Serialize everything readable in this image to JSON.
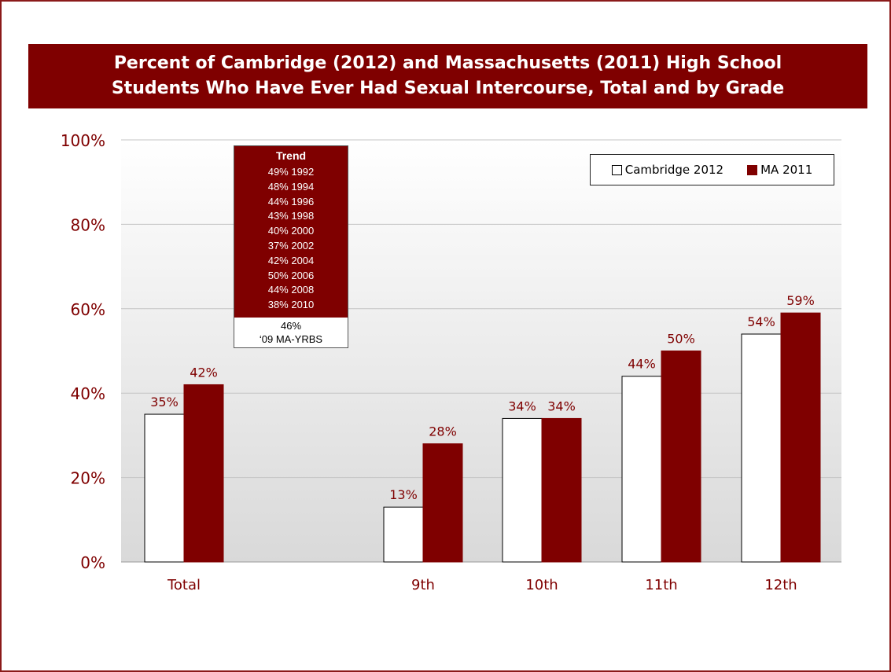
{
  "title_lines": [
    "Percent of Cambridge (2012) and Massachusetts (2011) High School",
    "Students Who Have Ever Had Sexual Intercourse, Total and by Grade"
  ],
  "trend": {
    "title": "Trend",
    "items": [
      "49% 1992",
      "48% 1994",
      "44% 1996",
      "43% 1998",
      "40% 2000",
      "37% 2002",
      "42% 2004",
      "50% 2006",
      "44% 2008",
      "38% 2010"
    ],
    "bottom_line1": "46%",
    "bottom_line2": "‘09 MA-YRBS"
  },
  "legend": {
    "cambridge": "Cambridge 2012",
    "ma": "MA 2011"
  },
  "colors": {
    "cambridge": "#ffffff",
    "ma": "#7f0000",
    "title_bg": "#7f0000",
    "label_text": "#7f0000"
  },
  "chart_data": {
    "type": "bar",
    "categories": [
      "Total",
      "9th",
      "10th",
      "11th",
      "12th"
    ],
    "series": [
      {
        "name": "Cambridge 2012",
        "values": [
          35,
          13,
          34,
          44,
          54
        ],
        "labels": [
          "35%",
          "13%",
          "34%",
          "44%",
          "54%"
        ]
      },
      {
        "name": "MA 2011",
        "values": [
          42,
          28,
          34,
          50,
          59
        ],
        "labels": [
          "42%",
          "28%",
          "34%",
          "50%",
          "59%"
        ]
      }
    ],
    "ylim": [
      0,
      100
    ],
    "yticks": [
      0,
      20,
      40,
      60,
      80,
      100
    ],
    "ytick_labels": [
      "0%",
      "20%",
      "40%",
      "60%",
      "80%",
      "100%"
    ],
    "grid": true,
    "legend_position": "top-right"
  }
}
